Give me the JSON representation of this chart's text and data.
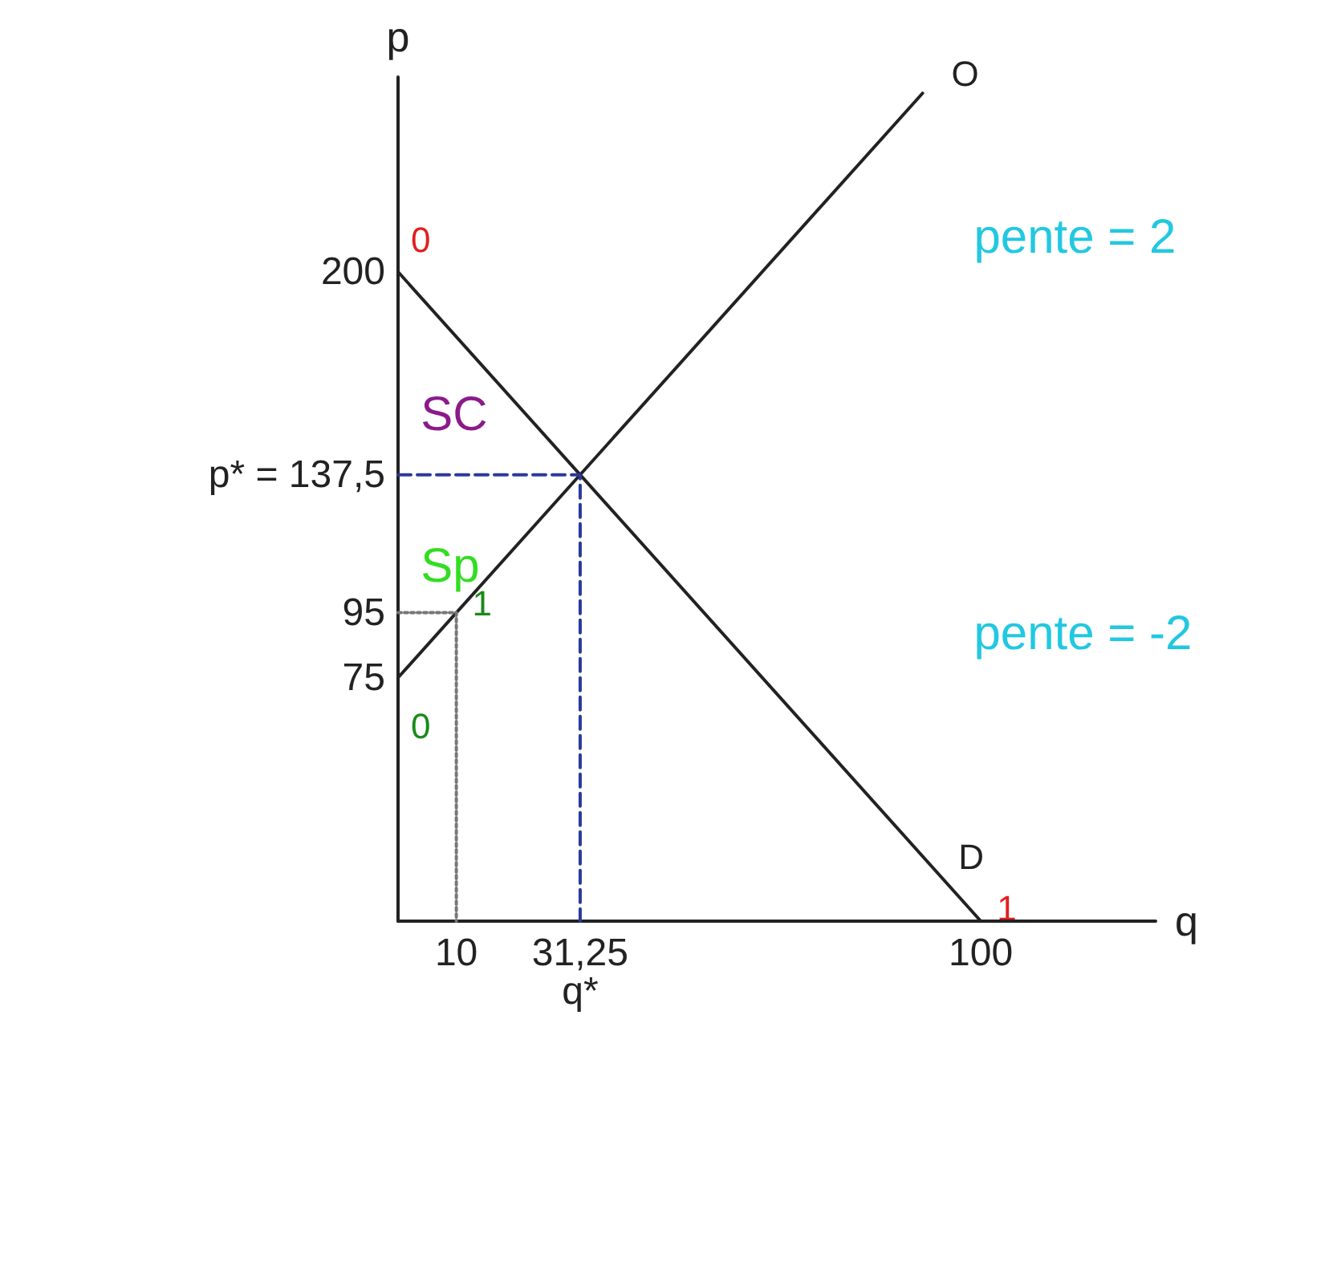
{
  "chart_data": {
    "type": "line",
    "xlabel": "q",
    "ylabel": "p",
    "xlim": [
      0,
      130
    ],
    "ylim": [
      0,
      260
    ],
    "xticks": [
      10,
      {
        "value": 31.25,
        "label": "31,25\nq*"
      },
      100
    ],
    "yticks": [
      75,
      95,
      {
        "value": 137.5,
        "label": "p* = 137,5"
      },
      200
    ],
    "grid": false,
    "marker": "none",
    "series": [
      {
        "color": "#222222",
        "x": [
          0,
          100
        ],
        "values": [
          200,
          0
        ]
      },
      {
        "color": "#222222",
        "x": [
          0,
          90
        ],
        "values": [
          75,
          255
        ]
      },
      {
        "color": "#2a3a9a",
        "line_style": "dashed",
        "x": [
          0,
          31.25,
          31.25
        ],
        "values": [
          137.5,
          137.5,
          0
        ]
      },
      {
        "color": "#777777",
        "line_style": "dotted",
        "x": [
          0,
          10,
          10
        ],
        "values": [
          95,
          95,
          0
        ]
      }
    ],
    "annotations": [
      {
        "text": "O",
        "x": 90,
        "y": 255
      },
      {
        "text": "D",
        "x": 100,
        "y": 0
      },
      "SC",
      "Sp",
      "pente = 2",
      "pente = -2",
      {
        "text": "0",
        "x": 0,
        "y": 200
      },
      {
        "text": "1",
        "x": 100,
        "y": 0
      },
      {
        "text": "0",
        "x": 0,
        "y": 75
      },
      {
        "text": "1",
        "x": 10,
        "y": 95
      }
    ]
  }
}
